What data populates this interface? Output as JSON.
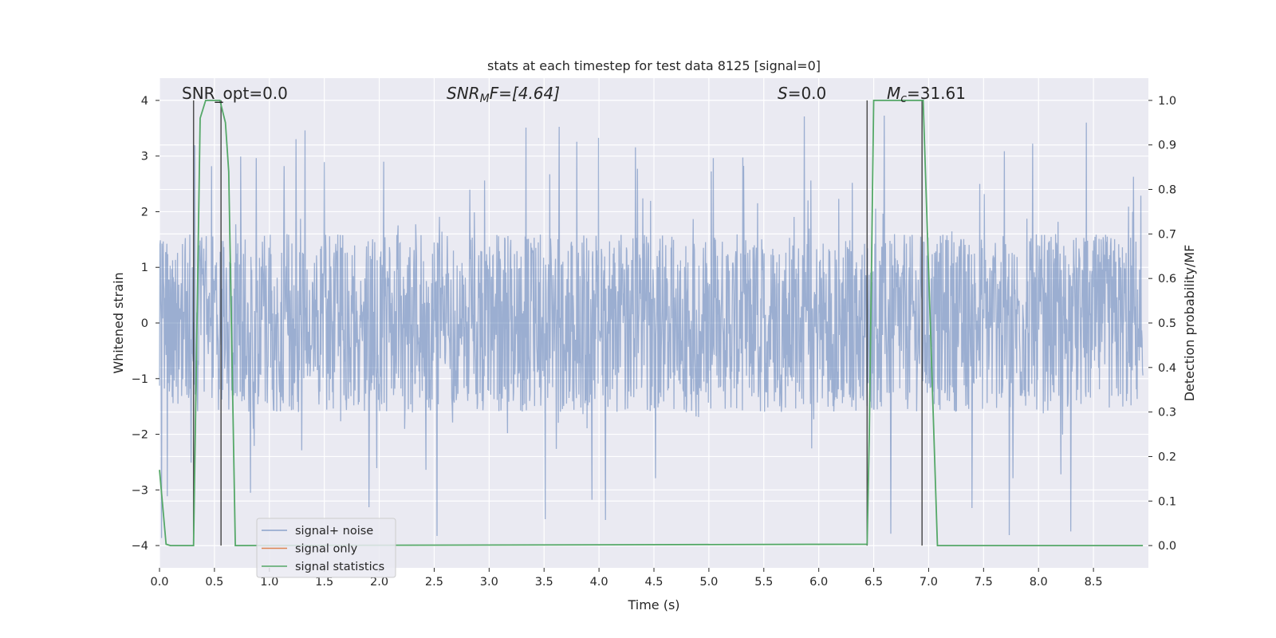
{
  "chart_data": {
    "type": "line",
    "title": "stats at each timestep for test data 8125 [signal=0]",
    "xlabel": "Time (s)",
    "ylabel": "Whitened strain",
    "y2label": "Detection probability/MF",
    "xlim": [
      0,
      9
    ],
    "ylim": [
      -4.4,
      4.4
    ],
    "y2lim": [
      -0.05,
      1.05
    ],
    "x_ticks": [
      "0.0",
      "0.5",
      "1.0",
      "1.5",
      "2.0",
      "2.5",
      "3.0",
      "3.5",
      "4.0",
      "4.5",
      "5.0",
      "5.5",
      "6.0",
      "6.5",
      "7.0",
      "7.5",
      "8.0",
      "8.5"
    ],
    "y_ticks": [
      "4",
      "3",
      "2",
      "1",
      "0",
      "−1",
      "−2",
      "−3",
      "−4"
    ],
    "y2_ticks": [
      "1.0",
      "0.9",
      "0.8",
      "0.7",
      "0.6",
      "0.5",
      "0.4",
      "0.3",
      "0.2",
      "0.1",
      "0.0"
    ],
    "grid": true,
    "legend_position": "lower-left",
    "annotations": {
      "snr_opt": "SNR_opt=0.0",
      "snr_mf_main": "SNR",
      "snr_mf_sub": "M",
      "snr_mf_tail": "F=[4.64]",
      "s_main": "S",
      "s_tail": "=0.0",
      "mc_main": "M",
      "mc_sub": "c",
      "mc_tail": "=31.61"
    },
    "series": [
      {
        "name": "signal+ noise",
        "color": "#4c72b0",
        "axis": "left",
        "description_values": {
          "typical_abs_max": 1.6,
          "max": 3.75,
          "min": -3.95
        }
      },
      {
        "name": "signal only",
        "color": "#dd8452",
        "axis": "left",
        "x": [
          0,
          9
        ],
        "y": [
          0,
          0
        ]
      },
      {
        "name": "signal statistics",
        "color": "#55a868",
        "axis": "right",
        "x": [
          0.0,
          0.06,
          0.1,
          0.3,
          0.31,
          0.37,
          0.42,
          0.55,
          0.6,
          0.63,
          0.69,
          6.44,
          6.46,
          6.5,
          6.95,
          7.08,
          8.95
        ],
        "y": [
          0.17,
          0.003,
          0.0,
          0.0,
          0.0,
          0.96,
          1.0,
          1.0,
          0.95,
          0.84,
          0.0,
          0.003,
          0.25,
          1.0,
          1.0,
          0.0,
          0.0
        ]
      }
    ],
    "vertical_markers": [
      0.31,
      0.56,
      6.44,
      6.94
    ]
  }
}
